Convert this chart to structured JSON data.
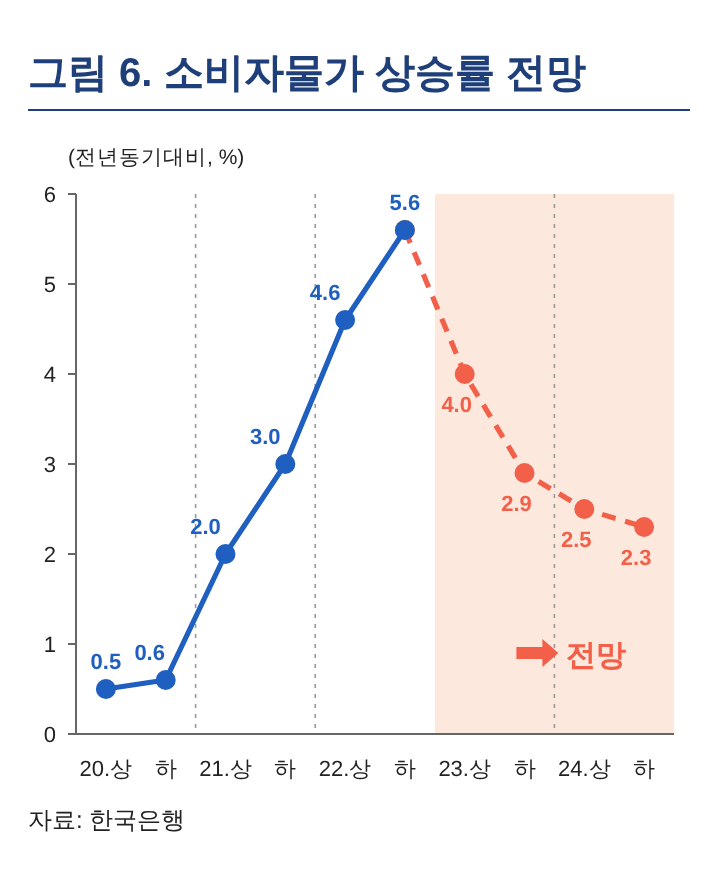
{
  "chart_data": {
    "type": "line",
    "title": "그림 6. 소비자물가 상승률 전망",
    "ylabel": "(전년동기대비, %)",
    "categories": [
      "20.상",
      "하",
      "21.상",
      "하",
      "22.상",
      "하",
      "23.상",
      "하",
      "24.상",
      "하"
    ],
    "series": [
      {
        "color": "#f2604a",
        "line_style": "dashed",
        "values": [
          null,
          null,
          null,
          null,
          null,
          5.6,
          4.0,
          2.9,
          2.5,
          2.3
        ],
        "value_labels": [
          null,
          null,
          null,
          null,
          null,
          null,
          "4.0",
          "2.9",
          "2.5",
          "2.3"
        ]
      },
      {
        "color": "#1f5fbf",
        "line_style": "solid",
        "values": [
          0.5,
          0.6,
          2.0,
          3.0,
          4.6,
          5.6,
          null,
          null,
          null,
          null
        ],
        "value_labels": [
          "0.5",
          "0.6",
          "2.0",
          "3.0",
          "4.6",
          "5.6",
          null,
          null,
          null,
          null
        ]
      }
    ],
    "marker": "circle",
    "ylim": [
      0,
      6
    ],
    "yticks": [
      0,
      1,
      2,
      3,
      4,
      5,
      6
    ],
    "grid": false,
    "annotations": [
      "전망",
      "자료: 한국은행"
    ]
  }
}
